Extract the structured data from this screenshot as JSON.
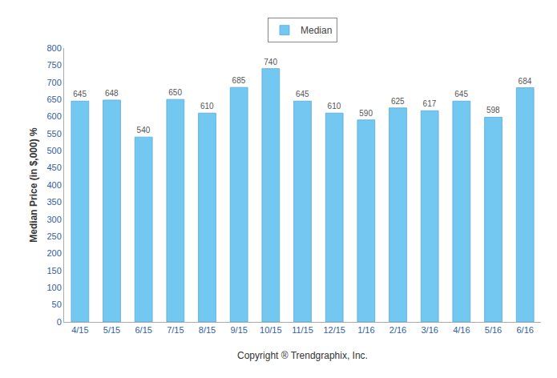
{
  "chart_data": {
    "type": "bar",
    "categories": [
      "4/15",
      "5/15",
      "6/15",
      "7/15",
      "8/15",
      "9/15",
      "10/15",
      "11/15",
      "12/15",
      "1/16",
      "2/16",
      "3/16",
      "4/16",
      "5/16",
      "6/16"
    ],
    "series": [
      {
        "name": "Median",
        "color": "#72C8F0",
        "values": [
          645,
          648,
          540,
          650,
          610,
          685,
          740,
          645,
          610,
          590,
          625,
          617,
          645,
          598,
          684
        ]
      }
    ],
    "xlabel": "Copyright ® Trendgraphix, Inc.",
    "ylabel": "Median Price (in $,000) %",
    "ylim": [
      0,
      800
    ],
    "yticks": [
      0,
      50,
      100,
      150,
      200,
      250,
      300,
      350,
      400,
      450,
      500,
      550,
      600,
      650,
      700,
      750,
      800
    ],
    "grid": false,
    "legend": "top",
    "data_labels": true
  }
}
